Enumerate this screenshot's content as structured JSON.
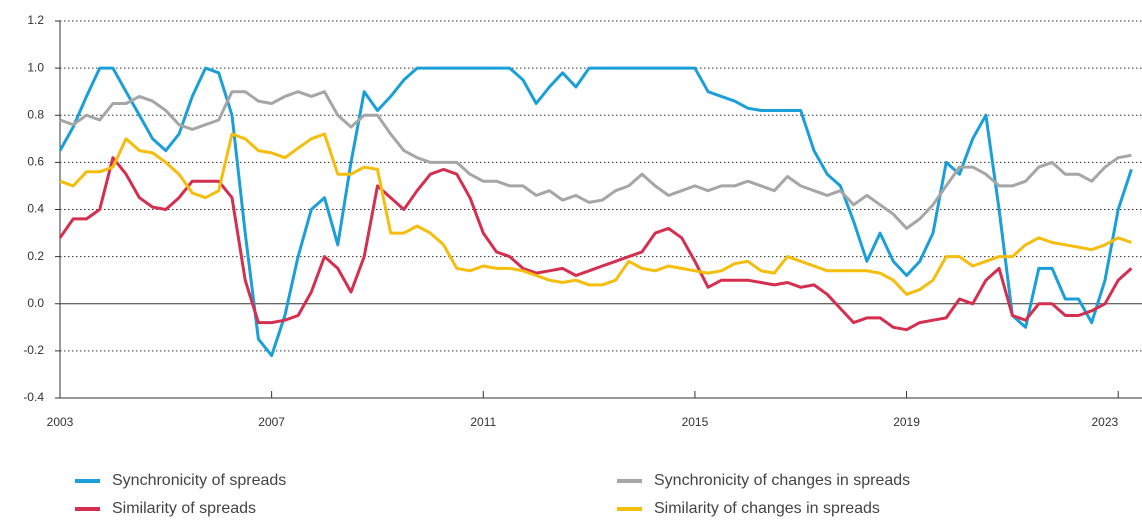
{
  "chart_data": {
    "type": "line",
    "x": [
      2003,
      2003.25,
      2003.5,
      2003.75,
      2004,
      2004.25,
      2004.5,
      2004.75,
      2005,
      2005.25,
      2005.5,
      2005.75,
      2006,
      2006.25,
      2006.5,
      2006.75,
      2007,
      2007.25,
      2007.5,
      2007.75,
      2008,
      2008.25,
      2008.5,
      2008.75,
      2009,
      2009.25,
      2009.5,
      2009.75,
      2010,
      2010.25,
      2010.5,
      2010.75,
      2011,
      2011.25,
      2011.5,
      2011.75,
      2012,
      2012.25,
      2012.5,
      2012.75,
      2013,
      2013.25,
      2013.5,
      2013.75,
      2014,
      2014.25,
      2014.5,
      2014.75,
      2015,
      2015.25,
      2015.5,
      2015.75,
      2016,
      2016.25,
      2016.5,
      2016.75,
      2017,
      2017.25,
      2017.5,
      2017.75,
      2018,
      2018.25,
      2018.5,
      2018.75,
      2019,
      2019.25,
      2019.5,
      2019.75,
      2020,
      2020.25,
      2020.5,
      2020.75,
      2021,
      2021.25,
      2021.5,
      2021.75,
      2022,
      2022.25,
      2022.5,
      2022.75,
      2023,
      2023.25
    ],
    "series": [
      {
        "name": "Synchronicity of spreads",
        "color": "#1a9fd9",
        "values": [
          0.65,
          0.75,
          0.88,
          1.0,
          1.0,
          0.9,
          0.8,
          0.7,
          0.65,
          0.72,
          0.88,
          1.0,
          0.98,
          0.8,
          0.3,
          -0.15,
          -0.22,
          -0.05,
          0.2,
          0.4,
          0.45,
          0.25,
          0.6,
          0.9,
          0.82,
          0.88,
          0.95,
          1.0,
          1.0,
          1.0,
          1.0,
          1.0,
          1.0,
          1.0,
          1.0,
          0.95,
          0.85,
          0.92,
          0.98,
          0.92,
          1.0,
          1.0,
          1.0,
          1.0,
          1.0,
          1.0,
          1.0,
          1.0,
          1.0,
          0.9,
          0.88,
          0.86,
          0.83,
          0.82,
          0.82,
          0.82,
          0.82,
          0.65,
          0.55,
          0.5,
          0.35,
          0.18,
          0.3,
          0.18,
          0.12,
          0.18,
          0.3,
          0.6,
          0.55,
          0.7,
          0.8,
          0.4,
          -0.05,
          -0.1,
          0.15,
          0.15,
          0.02,
          0.02,
          -0.08,
          0.1,
          0.4,
          0.57
        ]
      },
      {
        "name": "Synchronicity of changes in spreads",
        "color": "#a6a6a6",
        "values": [
          0.78,
          0.76,
          0.8,
          0.78,
          0.85,
          0.85,
          0.88,
          0.86,
          0.82,
          0.76,
          0.74,
          0.76,
          0.78,
          0.9,
          0.9,
          0.86,
          0.85,
          0.88,
          0.9,
          0.88,
          0.9,
          0.8,
          0.75,
          0.8,
          0.8,
          0.72,
          0.65,
          0.62,
          0.6,
          0.6,
          0.6,
          0.55,
          0.52,
          0.52,
          0.5,
          0.5,
          0.46,
          0.48,
          0.44,
          0.46,
          0.43,
          0.44,
          0.48,
          0.5,
          0.55,
          0.5,
          0.46,
          0.48,
          0.5,
          0.48,
          0.5,
          0.5,
          0.52,
          0.5,
          0.48,
          0.54,
          0.5,
          0.48,
          0.46,
          0.48,
          0.42,
          0.46,
          0.42,
          0.38,
          0.32,
          0.36,
          0.42,
          0.5,
          0.58,
          0.58,
          0.55,
          0.5,
          0.5,
          0.52,
          0.58,
          0.6,
          0.55,
          0.55,
          0.52,
          0.58,
          0.62,
          0.63
        ]
      },
      {
        "name": "Similarity of spreads",
        "color": "#d42f4f",
        "values": [
          0.28,
          0.36,
          0.36,
          0.4,
          0.62,
          0.55,
          0.45,
          0.41,
          0.4,
          0.45,
          0.52,
          0.52,
          0.52,
          0.45,
          0.1,
          -0.08,
          -0.08,
          -0.07,
          -0.05,
          0.05,
          0.2,
          0.15,
          0.05,
          0.2,
          0.5,
          0.45,
          0.4,
          0.48,
          0.55,
          0.57,
          0.55,
          0.45,
          0.3,
          0.22,
          0.2,
          0.15,
          0.13,
          0.14,
          0.15,
          0.12,
          0.14,
          0.16,
          0.18,
          0.2,
          0.22,
          0.3,
          0.32,
          0.28,
          0.18,
          0.07,
          0.1,
          0.1,
          0.1,
          0.09,
          0.08,
          0.09,
          0.07,
          0.08,
          0.04,
          -0.02,
          -0.08,
          -0.06,
          -0.06,
          -0.1,
          -0.11,
          -0.08,
          -0.07,
          -0.06,
          0.02,
          0.0,
          0.1,
          0.15,
          -0.05,
          -0.07,
          0.0,
          0.0,
          -0.05,
          -0.05,
          -0.03,
          0.0,
          0.1,
          0.15
        ]
      },
      {
        "name": "Similarity of changes in spreads",
        "color": "#f5bd0c",
        "values": [
          0.52,
          0.5,
          0.56,
          0.56,
          0.58,
          0.7,
          0.65,
          0.64,
          0.6,
          0.55,
          0.47,
          0.45,
          0.48,
          0.72,
          0.7,
          0.65,
          0.64,
          0.62,
          0.66,
          0.7,
          0.72,
          0.55,
          0.55,
          0.58,
          0.57,
          0.3,
          0.3,
          0.33,
          0.3,
          0.25,
          0.15,
          0.14,
          0.16,
          0.15,
          0.15,
          0.14,
          0.12,
          0.1,
          0.09,
          0.1,
          0.08,
          0.08,
          0.1,
          0.18,
          0.15,
          0.14,
          0.16,
          0.15,
          0.14,
          0.13,
          0.14,
          0.17,
          0.18,
          0.14,
          0.13,
          0.2,
          0.18,
          0.16,
          0.14,
          0.14,
          0.14,
          0.14,
          0.13,
          0.1,
          0.04,
          0.06,
          0.1,
          0.2,
          0.2,
          0.16,
          0.18,
          0.2,
          0.2,
          0.25,
          0.28,
          0.26,
          0.25,
          0.24,
          0.23,
          0.25,
          0.28,
          0.26
        ]
      }
    ],
    "xlim": [
      2003,
      2023.45
    ],
    "xticks": [
      2003,
      2007,
      2011,
      2015,
      2019,
      2023
    ],
    "ylim": [
      -0.4,
      1.2
    ],
    "yticks": [
      {
        "value": -0.4,
        "label": "-0.4"
      },
      {
        "value": -0.2,
        "label": "-0.2"
      },
      {
        "value": 0,
        "label": "0.0"
      },
      {
        "value": 0.2,
        "label": "0.2"
      },
      {
        "value": 0.4,
        "label": "0.4"
      },
      {
        "value": 0.6,
        "label": "0.6"
      },
      {
        "value": 0.8,
        "label": "0.8"
      },
      {
        "value": 1,
        "label": "1.0"
      },
      {
        "value": 1.2,
        "label": "1.2"
      }
    ],
    "grid": true
  }
}
